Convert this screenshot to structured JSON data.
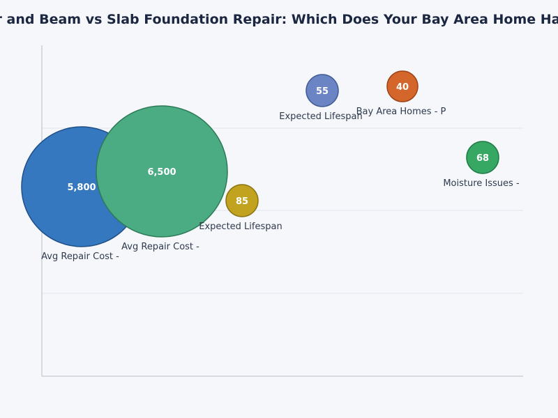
{
  "chart_data": {
    "type": "bubble",
    "title": "Pier and Beam vs Slab Foundation Repair: Which Does Your Bay Area Home Have?",
    "xlabel": "",
    "ylabel": "",
    "grid": true,
    "legend": "none",
    "points": [
      {
        "label": "Avg Repair Cost -",
        "value": 5800,
        "value_label": "5,800",
        "color": "#3578c0",
        "stroke": "#1f4f86"
      },
      {
        "label": "Avg Repair Cost -",
        "value": 6500,
        "value_label": "6,500",
        "color": "#4bab82",
        "stroke": "#2b7a55"
      },
      {
        "label": "Expected Lifespan",
        "value": 85,
        "value_label": "85",
        "color": "#c2a31f",
        "stroke": "#8a7410"
      },
      {
        "label": "Expected Lifespan",
        "value": 55,
        "value_label": "55",
        "color": "#6a84c4",
        "stroke": "#3f5a94"
      },
      {
        "label": "Bay Area Homes - P",
        "value": 40,
        "value_label": "40",
        "color": "#d4662b",
        "stroke": "#9c4418"
      },
      {
        "label": "Moisture Issues -",
        "value": 68,
        "value_label": "68",
        "color": "#36a864",
        "stroke": "#1f7a44"
      }
    ]
  }
}
